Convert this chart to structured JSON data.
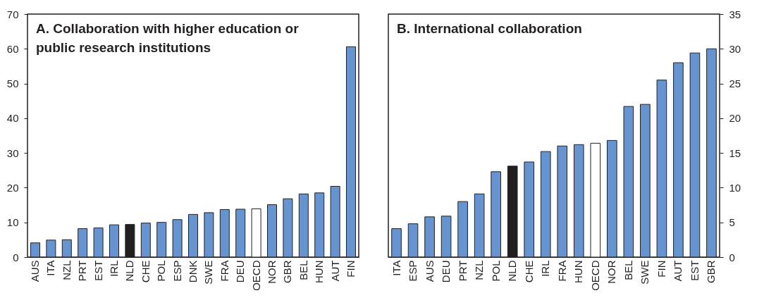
{
  "chart_data": [
    {
      "type": "bar",
      "title": "A. Collaboration with higher education or public research institutions",
      "categories": [
        "AUS",
        "ITA",
        "NZL",
        "PRT",
        "EST",
        "IRL",
        "NLD",
        "CHE",
        "POL",
        "ESP",
        "DNK",
        "SWE",
        "FRA",
        "DEU",
        "OECD",
        "NOR",
        "GBR",
        "BEL",
        "HUN",
        "AUT",
        "FIN"
      ],
      "values": [
        4.1,
        4.9,
        5.0,
        8.2,
        8.4,
        9.3,
        9.4,
        9.8,
        10.0,
        10.8,
        12.3,
        12.8,
        13.7,
        13.8,
        13.9,
        15.1,
        16.8,
        18.2,
        18.5,
        20.4,
        60.6
      ],
      "colors": [
        "#6694d0",
        "#6694d0",
        "#6694d0",
        "#6694d0",
        "#6694d0",
        "#6694d0",
        "#231f20",
        "#6694d0",
        "#6694d0",
        "#6694d0",
        "#6694d0",
        "#6694d0",
        "#6694d0",
        "#6694d0",
        "#ffffff",
        "#6694d0",
        "#6694d0",
        "#6694d0",
        "#6694d0",
        "#6694d0",
        "#6694d0"
      ],
      "ylim": [
        0,
        70
      ],
      "yticks": [
        0,
        10,
        20,
        30,
        40,
        50,
        60,
        70
      ],
      "grid": false
    },
    {
      "type": "bar",
      "title": "B. International collaboration",
      "categories": [
        "ITA",
        "ESP",
        "AUS",
        "DEU",
        "PRT",
        "NZL",
        "POL",
        "NLD",
        "CHE",
        "IRL",
        "FRA",
        "HUN",
        "OECD",
        "NOR",
        "BEL",
        "SWE",
        "FIN",
        "AUT",
        "EST",
        "GBR"
      ],
      "values": [
        4.1,
        4.8,
        5.8,
        5.9,
        8.0,
        9.1,
        12.3,
        13.1,
        13.7,
        15.2,
        16.0,
        16.2,
        16.4,
        16.8,
        21.7,
        22.0,
        25.5,
        28.0,
        29.4,
        30.0
      ],
      "colors": [
        "#6694d0",
        "#6694d0",
        "#6694d0",
        "#6694d0",
        "#6694d0",
        "#6694d0",
        "#6694d0",
        "#231f20",
        "#6694d0",
        "#6694d0",
        "#6694d0",
        "#6694d0",
        "#ffffff",
        "#6694d0",
        "#6694d0",
        "#6694d0",
        "#6694d0",
        "#6694d0",
        "#6694d0",
        "#6694d0"
      ],
      "ylim": [
        0,
        35
      ],
      "yticks": [
        0,
        5,
        10,
        15,
        20,
        25,
        30,
        35
      ],
      "grid": false
    }
  ]
}
